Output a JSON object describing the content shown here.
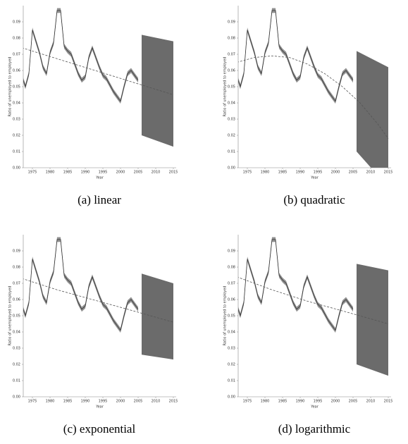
{
  "chart_data": [
    {
      "type": "line",
      "caption": "(a) linear",
      "xlabel": "Year",
      "ylabel": "Ratio of unemployed to employed",
      "xlim": [
        1972.4,
        2015.8
      ],
      "ylim": [
        0,
        0.1
      ],
      "xticks": [
        1975,
        1980,
        1985,
        1990,
        1995,
        2000,
        2005,
        2010,
        2015
      ],
      "yticks": [
        {
          "value": 0,
          "label": "0.00"
        },
        {
          "value": 0.01,
          "label": "0.01"
        },
        {
          "value": 0.02,
          "label": "0.02"
        },
        {
          "value": 0.03,
          "label": "0.03"
        },
        {
          "value": 0.04,
          "label": "0.04"
        },
        {
          "value": 0.05,
          "label": "0.05"
        },
        {
          "value": 0.06,
          "label": "0.06"
        },
        {
          "value": 0.07,
          "label": "0.07"
        },
        {
          "value": 0.08,
          "label": "0.08"
        },
        {
          "value": 0.09,
          "label": "0.09"
        }
      ],
      "x": [
        1972,
        1973,
        1974,
        1975,
        1976,
        1977,
        1978,
        1979,
        1980,
        1981,
        1982,
        1983,
        1984,
        1985,
        1986,
        1987,
        1988,
        1989,
        1990,
        1991,
        1992,
        1993,
        1994,
        1995,
        1996,
        1997,
        1998,
        1999,
        2000,
        2001,
        2002,
        2003,
        2004,
        2005
      ],
      "series": [
        {
          "color": "#333333",
          "error": 0.0015,
          "values": [
            0.057,
            0.05,
            0.058,
            0.085,
            0.078,
            0.071,
            0.062,
            0.058,
            0.071,
            0.077,
            0.097,
            0.097,
            0.075,
            0.072,
            0.07,
            0.064,
            0.058,
            0.054,
            0.056,
            0.068,
            0.074,
            0.068,
            0.062,
            0.057,
            0.055,
            0.051,
            0.047,
            0.044,
            0.041,
            0.05,
            0.058,
            0.06,
            0.057,
            0.054
          ]
        }
      ],
      "trend": {
        "x": [
          1972,
          2015
        ],
        "values": [
          0.074,
          0.045
        ]
      },
      "forecast": {
        "color": "#6b6b6b",
        "x": [
          2006,
          2015
        ],
        "lower": [
          0.02,
          0.013
        ],
        "upper": [
          0.082,
          0.078
        ]
      }
    },
    {
      "type": "line",
      "caption": "(b) quadratic",
      "xlabel": "Year",
      "ylabel": "Ratio of unemployed to employed",
      "xlim": [
        1972.4,
        2015.8
      ],
      "ylim": [
        0,
        0.1
      ],
      "xticks": [
        1975,
        1980,
        1985,
        1990,
        1995,
        2000,
        2005,
        2010,
        2015
      ],
      "yticks": [
        {
          "value": 0,
          "label": "0.00"
        },
        {
          "value": 0.01,
          "label": "0.01"
        },
        {
          "value": 0.02,
          "label": "0.02"
        },
        {
          "value": 0.03,
          "label": "0.03"
        },
        {
          "value": 0.04,
          "label": "0.04"
        },
        {
          "value": 0.05,
          "label": "0.05"
        },
        {
          "value": 0.06,
          "label": "0.06"
        },
        {
          "value": 0.07,
          "label": "0.07"
        },
        {
          "value": 0.08,
          "label": "0.08"
        },
        {
          "value": 0.09,
          "label": "0.09"
        }
      ],
      "x": [
        1972,
        1973,
        1974,
        1975,
        1976,
        1977,
        1978,
        1979,
        1980,
        1981,
        1982,
        1983,
        1984,
        1985,
        1986,
        1987,
        1988,
        1989,
        1990,
        1991,
        1992,
        1993,
        1994,
        1995,
        1996,
        1997,
        1998,
        1999,
        2000,
        2001,
        2002,
        2003,
        2004,
        2005
      ],
      "series": [
        {
          "color": "#333333",
          "error": 0.0015,
          "values": [
            0.057,
            0.05,
            0.058,
            0.085,
            0.078,
            0.071,
            0.062,
            0.058,
            0.071,
            0.077,
            0.097,
            0.097,
            0.075,
            0.072,
            0.07,
            0.064,
            0.058,
            0.054,
            0.056,
            0.068,
            0.074,
            0.068,
            0.062,
            0.057,
            0.055,
            0.051,
            0.047,
            0.044,
            0.041,
            0.05,
            0.058,
            0.06,
            0.057,
            0.054
          ]
        }
      ],
      "trend": {
        "x": [
          1972,
          1977,
          1982,
          1987,
          1992,
          1997,
          2002,
          2007,
          2012,
          2015
        ],
        "values": [
          0.065,
          0.068,
          0.069,
          0.068,
          0.064,
          0.058,
          0.05,
          0.04,
          0.027,
          0.018
        ]
      },
      "forecast": {
        "color": "#6b6b6b",
        "x": [
          2006,
          2015
        ],
        "lower": [
          0.01,
          -0.012
        ],
        "upper": [
          0.072,
          0.062
        ]
      }
    },
    {
      "type": "line",
      "caption": "(c) exponential",
      "xlabel": "Year",
      "ylabel": "Ratio of unemployed to employed",
      "xlim": [
        1972.4,
        2015.8
      ],
      "ylim": [
        0,
        0.1
      ],
      "xticks": [
        1975,
        1980,
        1985,
        1990,
        1995,
        2000,
        2005,
        2010,
        2015
      ],
      "yticks": [
        {
          "value": 0,
          "label": "0.00"
        },
        {
          "value": 0.01,
          "label": "0.01"
        },
        {
          "value": 0.02,
          "label": "0.02"
        },
        {
          "value": 0.03,
          "label": "0.03"
        },
        {
          "value": 0.04,
          "label": "0.04"
        },
        {
          "value": 0.05,
          "label": "0.05"
        },
        {
          "value": 0.06,
          "label": "0.06"
        },
        {
          "value": 0.07,
          "label": "0.07"
        },
        {
          "value": 0.08,
          "label": "0.08"
        },
        {
          "value": 0.09,
          "label": "0.09"
        }
      ],
      "x": [
        1972,
        1973,
        1974,
        1975,
        1976,
        1977,
        1978,
        1979,
        1980,
        1981,
        1982,
        1983,
        1984,
        1985,
        1986,
        1987,
        1988,
        1989,
        1990,
        1991,
        1992,
        1993,
        1994,
        1995,
        1996,
        1997,
        1998,
        1999,
        2000,
        2001,
        2002,
        2003,
        2004,
        2005
      ],
      "series": [
        {
          "color": "#333333",
          "error": 0.0015,
          "values": [
            0.057,
            0.05,
            0.058,
            0.085,
            0.078,
            0.071,
            0.062,
            0.058,
            0.071,
            0.077,
            0.097,
            0.097,
            0.075,
            0.072,
            0.07,
            0.064,
            0.058,
            0.054,
            0.056,
            0.068,
            0.074,
            0.068,
            0.062,
            0.057,
            0.055,
            0.051,
            0.047,
            0.044,
            0.041,
            0.05,
            0.058,
            0.06,
            0.057,
            0.054
          ]
        }
      ],
      "trend": {
        "x": [
          1972,
          1982,
          1992,
          2002,
          2015
        ],
        "values": [
          0.073,
          0.066,
          0.06,
          0.054,
          0.046
        ]
      },
      "forecast": {
        "color": "#6b6b6b",
        "x": [
          2006,
          2015
        ],
        "lower": [
          0.026,
          0.023
        ],
        "upper": [
          0.076,
          0.07
        ]
      }
    },
    {
      "type": "line",
      "caption": "(d) logarithmic",
      "xlabel": "Year",
      "ylabel": "Ratio of unemployed to employed",
      "xlim": [
        1972.4,
        2015.8
      ],
      "ylim": [
        0,
        0.1
      ],
      "xticks": [
        1975,
        1980,
        1985,
        1990,
        1995,
        2000,
        2005,
        2010,
        2015
      ],
      "yticks": [
        {
          "value": 0,
          "label": "0.00"
        },
        {
          "value": 0.01,
          "label": "0.01"
        },
        {
          "value": 0.02,
          "label": "0.02"
        },
        {
          "value": 0.03,
          "label": "0.03"
        },
        {
          "value": 0.04,
          "label": "0.04"
        },
        {
          "value": 0.05,
          "label": "0.05"
        },
        {
          "value": 0.06,
          "label": "0.06"
        },
        {
          "value": 0.07,
          "label": "0.07"
        },
        {
          "value": 0.08,
          "label": "0.08"
        },
        {
          "value": 0.09,
          "label": "0.09"
        }
      ],
      "x": [
        1972,
        1973,
        1974,
        1975,
        1976,
        1977,
        1978,
        1979,
        1980,
        1981,
        1982,
        1983,
        1984,
        1985,
        1986,
        1987,
        1988,
        1989,
        1990,
        1991,
        1992,
        1993,
        1994,
        1995,
        1996,
        1997,
        1998,
        1999,
        2000,
        2001,
        2002,
        2003,
        2004,
        2005
      ],
      "series": [
        {
          "color": "#333333",
          "error": 0.0015,
          "values": [
            0.057,
            0.05,
            0.058,
            0.085,
            0.078,
            0.071,
            0.062,
            0.058,
            0.071,
            0.077,
            0.097,
            0.097,
            0.075,
            0.072,
            0.07,
            0.064,
            0.058,
            0.054,
            0.056,
            0.068,
            0.074,
            0.068,
            0.062,
            0.057,
            0.055,
            0.051,
            0.047,
            0.044,
            0.041,
            0.05,
            0.058,
            0.06,
            0.057,
            0.054
          ]
        }
      ],
      "trend": {
        "x": [
          1972,
          1982,
          1992,
          2002,
          2015
        ],
        "values": [
          0.074,
          0.066,
          0.059,
          0.053,
          0.045
        ]
      },
      "forecast": {
        "color": "#6b6b6b",
        "x": [
          2006,
          2015
        ],
        "lower": [
          0.02,
          0.013
        ],
        "upper": [
          0.082,
          0.078
        ]
      }
    }
  ]
}
